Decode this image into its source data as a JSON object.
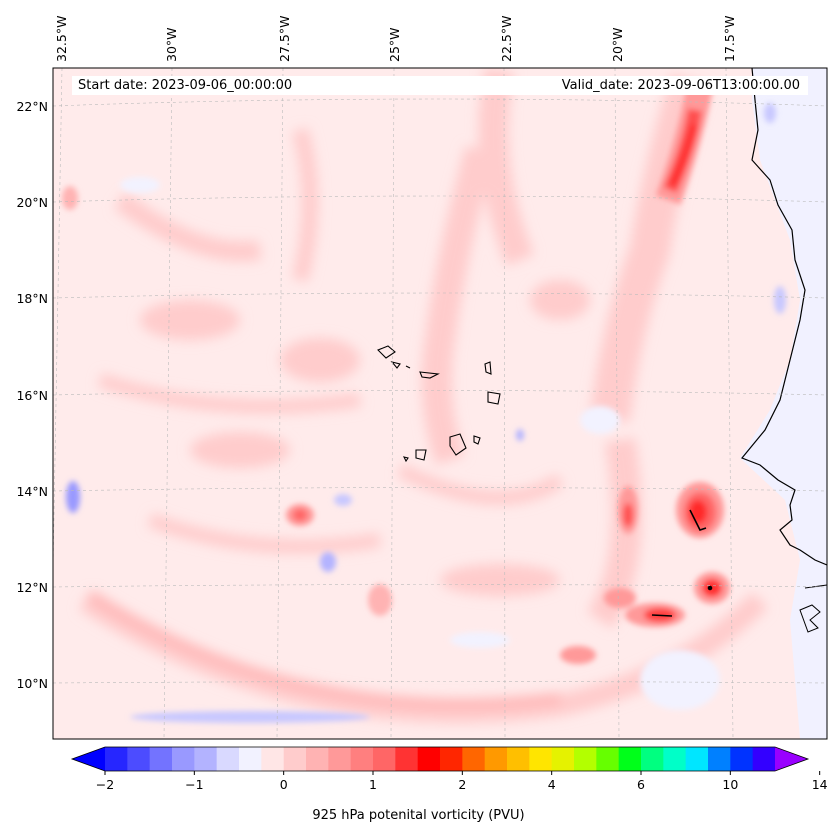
{
  "header": {
    "start_date": "Start date: 2023-09-06_00:00:00",
    "valid_date": "Valid_date: 2023-09-06T13:00:00.00"
  },
  "lon_labels": [
    "32.5°W",
    "30°W",
    "27.5°W",
    "25°W",
    "22.5°W",
    "20°W",
    "17.5°W"
  ],
  "lat_labels": [
    "22°N",
    "20°N",
    "18°N",
    "16°N",
    "14°N",
    "12°N",
    "10°N"
  ],
  "colorbar": {
    "title": "925 hPa potenital vorticity (PVU)",
    "ticks": [
      "−2",
      "−1",
      "0",
      "1",
      "2",
      "4",
      "6",
      "10",
      "14"
    ],
    "colors": [
      "#0000ff",
      "#2626ff",
      "#4c4cff",
      "#7373ff",
      "#9999ff",
      "#b3b3ff",
      "#d9d9ff",
      "#f2f2ff",
      "#ffe6e6",
      "#ffcccc",
      "#ffb3b3",
      "#ff9999",
      "#ff7f7f",
      "#ff6666",
      "#ff3333",
      "#ff0000",
      "#ff2600",
      "#ff6600",
      "#ff9900",
      "#ffbf00",
      "#ffe500",
      "#e5f200",
      "#b3ff00",
      "#66ff00",
      "#00ff1a",
      "#00ff80",
      "#00ffc8",
      "#00e6ff",
      "#0080ff",
      "#0033ff",
      "#3300ff",
      "#9900ff"
    ]
  },
  "map": {
    "background_color": "#ffebeb",
    "land_east_color": "#f1f1ff"
  }
}
